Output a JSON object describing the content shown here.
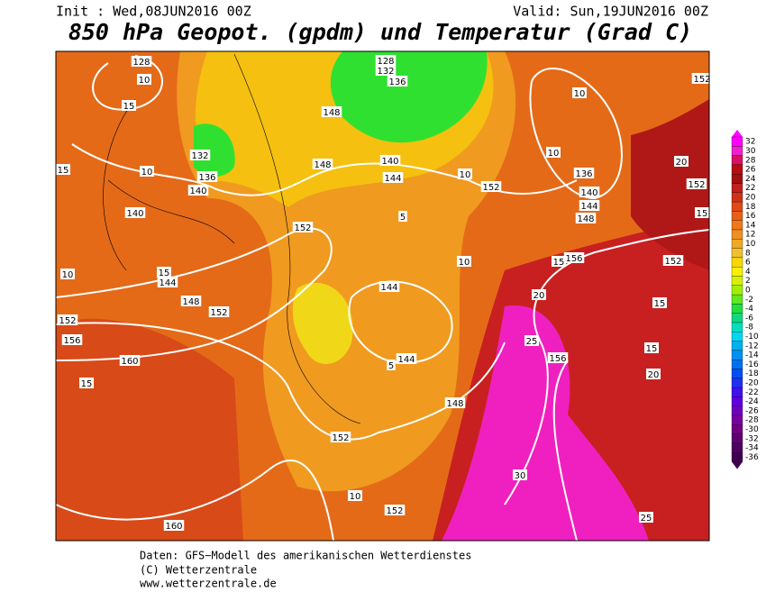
{
  "header": {
    "init": "Init : Wed,08JUN2016 00Z",
    "valid": "Valid: Sun,19JUN2016 00Z",
    "title": "850 hPa Geopot. (gpdm) und Temperatur (Grad C)"
  },
  "legend": {
    "labels": [
      "32",
      "30",
      "28",
      "26",
      "24",
      "22",
      "20",
      "18",
      "16",
      "14",
      "12",
      "10",
      "8",
      "6",
      "4",
      "2",
      "0",
      "-2",
      "-4",
      "-6",
      "-8",
      "-10",
      "-12",
      "-14",
      "-16",
      "-18",
      "-20",
      "-22",
      "-24",
      "-26",
      "-28",
      "-30",
      "-32",
      "-34",
      "-36"
    ],
    "colors": [
      "#ff00ff",
      "#f020d0",
      "#d81060",
      "#b80c10",
      "#a01010",
      "#c02020",
      "#d03018",
      "#e04818",
      "#e86018",
      "#f07818",
      "#f09020",
      "#f0a828",
      "#f0c030",
      "#f8d800",
      "#f8f000",
      "#d8f000",
      "#a0f000",
      "#60e820",
      "#20e040",
      "#10d880",
      "#00e0c0",
      "#00d8f0",
      "#00b0f0",
      "#0090f0",
      "#0070f0",
      "#0050f0",
      "#2030f0",
      "#4010f0",
      "#6000e0",
      "#7000c0",
      "#7800a0",
      "#700080",
      "#600070",
      "#500060",
      "#400050"
    ]
  },
  "map": {
    "contour_labels": [
      "128",
      "10",
      "15",
      "10",
      "15",
      "140",
      "10",
      "15",
      "144",
      "148",
      "152",
      "152",
      "156",
      "160",
      "15",
      "132",
      "136",
      "140",
      "128",
      "132",
      "136",
      "148",
      "148",
      "140",
      "144",
      "152",
      "144",
      "144",
      "148",
      "152",
      "10",
      "152",
      "160",
      "10",
      "152",
      "10",
      "10",
      "136",
      "140",
      "144",
      "148",
      "156",
      "152",
      "20",
      "25",
      "156",
      "15",
      "15",
      "20",
      "30",
      "25",
      "152",
      "20",
      "152",
      "15",
      "5",
      "5",
      "10",
      "15"
    ]
  },
  "footer": {
    "lines": [
      "Daten: GFS−Modell des amerikanischen Wetterdienstes",
      "(C) Wetterzentrale",
      "www.wetterzentrale.de"
    ]
  }
}
